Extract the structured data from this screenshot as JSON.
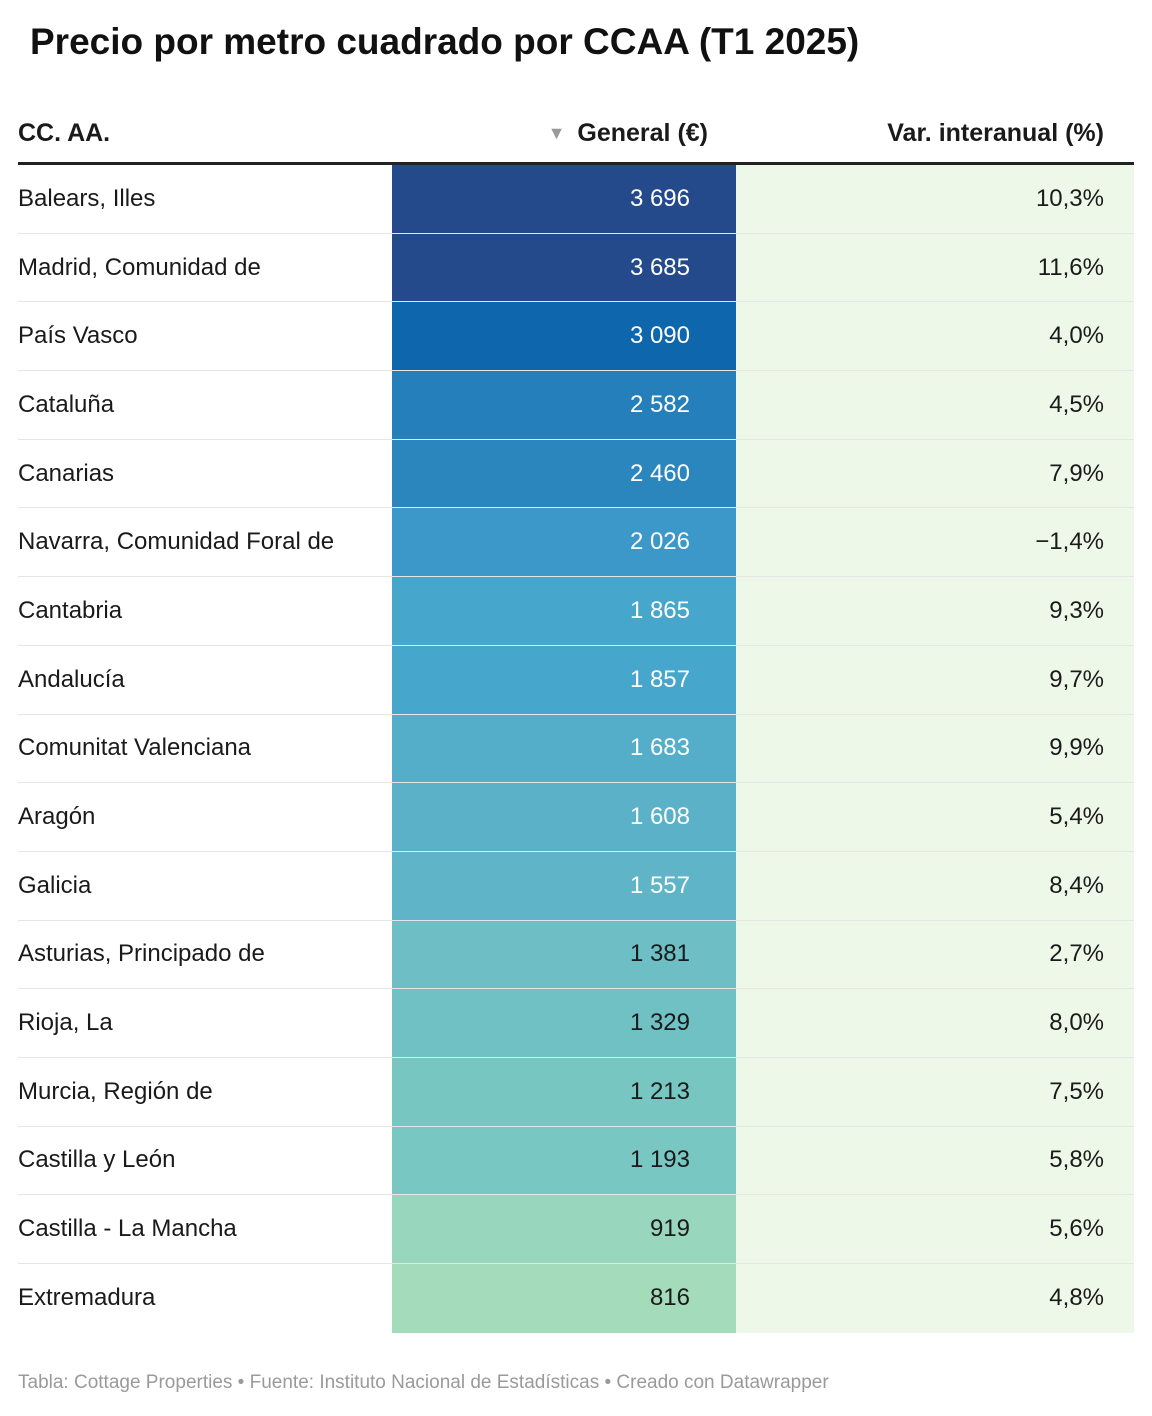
{
  "title": "Precio por metro cuadrado por CCAA (T1 2025)",
  "headers": {
    "region": "CC. AA.",
    "price": "General (€)",
    "variation": "Var. interanual (%)",
    "sort_icon": "▼"
  },
  "sort_indicator_icon": "sort-descending-icon",
  "colors": {
    "var_column_bg": "#eef8e9",
    "header_rule": "#222222",
    "scale_high": "#244a8c",
    "scale_low": "#a3dbbb"
  },
  "chart_data": {
    "type": "table",
    "title": "Precio por metro cuadrado por CCAA (T1 2025)",
    "columns": [
      "CC. AA.",
      "General (€)",
      "Var. interanual (%)"
    ],
    "sorted_by": "General (€)",
    "sort_order": "descending",
    "rows": [
      {
        "region": "Balears, Illes",
        "price": 3696,
        "price_label": "3 696",
        "variation": "10,3%",
        "color": "#244a8c"
      },
      {
        "region": "Madrid, Comunidad de",
        "price": 3685,
        "price_label": "3 685",
        "variation": "11,6%",
        "color": "#244a8c"
      },
      {
        "region": "País Vasco",
        "price": 3090,
        "price_label": "3 090",
        "variation": "4,0%",
        "color": "#0e66ad"
      },
      {
        "region": "Cataluña",
        "price": 2582,
        "price_label": "2 582",
        "variation": "4,5%",
        "color": "#247fbb"
      },
      {
        "region": "Canarias",
        "price": 2460,
        "price_label": "2 460",
        "variation": "7,9%",
        "color": "#2b86bd"
      },
      {
        "region": "Navarra, Comunidad Foral de",
        "price": 2026,
        "price_label": "2 026",
        "variation": "−1,4%",
        "color": "#3b98c8"
      },
      {
        "region": "Cantabria",
        "price": 1865,
        "price_label": "1 865",
        "variation": "9,3%",
        "color": "#47a6cc"
      },
      {
        "region": "Andalucía",
        "price": 1857,
        "price_label": "1 857",
        "variation": "9,7%",
        "color": "#47a6cc"
      },
      {
        "region": "Comunitat Valenciana",
        "price": 1683,
        "price_label": "1 683",
        "variation": "9,9%",
        "color": "#55aec9"
      },
      {
        "region": "Aragón",
        "price": 1608,
        "price_label": "1 608",
        "variation": "5,4%",
        "color": "#5ab1c8"
      },
      {
        "region": "Galicia",
        "price": 1557,
        "price_label": "1 557",
        "variation": "8,4%",
        "color": "#5fb4c8"
      },
      {
        "region": "Asturias, Principado de",
        "price": 1381,
        "price_label": "1 381",
        "variation": "2,7%",
        "color": "#6dbfc5"
      },
      {
        "region": "Rioja, La",
        "price": 1329,
        "price_label": "1 329",
        "variation": "8,0%",
        "color": "#70c1c4"
      },
      {
        "region": "Murcia, Región de",
        "price": 1213,
        "price_label": "1 213",
        "variation": "7,5%",
        "color": "#78c6c2"
      },
      {
        "region": "Castilla y León",
        "price": 1193,
        "price_label": "1 193",
        "variation": "5,8%",
        "color": "#79c7c2"
      },
      {
        "region": "Castilla - La Mancha",
        "price": 919,
        "price_label": "919",
        "variation": "5,6%",
        "color": "#98d6bd"
      },
      {
        "region": "Extremadura",
        "price": 816,
        "price_label": "816",
        "variation": "4,8%",
        "color": "#a3dbbb"
      }
    ]
  },
  "footer": "Tabla: Cottage Properties • Fuente: Instituto Nacional de Estadísticas • Creado con Datawrapper"
}
